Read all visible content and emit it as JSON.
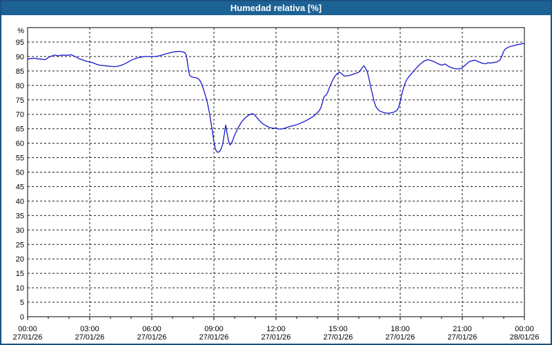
{
  "window": {
    "title": "Humedad relativa [%]"
  },
  "colors": {
    "titlebar_bg": "#1d6294",
    "titlebar_text": "#ffffff",
    "window_border": "#1a5080",
    "plot_border": "#000000",
    "grid": "#1a1a1a",
    "axis_text": "#000000",
    "line": "#1515cc",
    "plot_bg": "#ffffff"
  },
  "chart_data": {
    "type": "line",
    "title": "Humedad relativa [%]",
    "ylabel_unit": "%",
    "ylim": [
      0,
      100
    ],
    "y_ticks": [
      0,
      5,
      10,
      15,
      20,
      25,
      30,
      35,
      40,
      45,
      50,
      55,
      60,
      65,
      70,
      75,
      80,
      85,
      90,
      95
    ],
    "xlim_hours": [
      0,
      24
    ],
    "x_minor_tick_every_hours": 1,
    "grid": "dashed",
    "legend": "none",
    "x_ticks": [
      {
        "t": 0,
        "time": "00:00",
        "date": "27/01/26"
      },
      {
        "t": 3,
        "time": "03:00",
        "date": "27/01/26"
      },
      {
        "t": 6,
        "time": "06:00",
        "date": "27/01/26"
      },
      {
        "t": 9,
        "time": "09:00",
        "date": "27/01/26"
      },
      {
        "t": 12,
        "time": "12:00",
        "date": "27/01/26"
      },
      {
        "t": 15,
        "time": "15:00",
        "date": "27/01/26"
      },
      {
        "t": 18,
        "time": "18:00",
        "date": "27/01/26"
      },
      {
        "t": 21,
        "time": "21:00",
        "date": "27/01/26"
      },
      {
        "t": 24,
        "time": "00:00",
        "date": "28/01/26"
      }
    ],
    "series": [
      {
        "name": "Humedad relativa",
        "color": "#1515cc",
        "points": [
          [
            0.0,
            89.0
          ],
          [
            0.08,
            89.2
          ],
          [
            0.17,
            89.3
          ],
          [
            0.33,
            89.4
          ],
          [
            0.5,
            89.2
          ],
          [
            0.67,
            89.1
          ],
          [
            0.83,
            88.9
          ],
          [
            0.92,
            89.2
          ],
          [
            1.0,
            89.7
          ],
          [
            1.17,
            90.2
          ],
          [
            1.33,
            90.5
          ],
          [
            1.5,
            90.2
          ],
          [
            1.58,
            90.4
          ],
          [
            1.75,
            90.5
          ],
          [
            1.92,
            90.4
          ],
          [
            2.0,
            90.5
          ],
          [
            2.08,
            90.6
          ],
          [
            2.17,
            90.4
          ],
          [
            2.33,
            89.9
          ],
          [
            2.5,
            89.2
          ],
          [
            2.67,
            88.8
          ],
          [
            2.83,
            88.4
          ],
          [
            3.0,
            88.1
          ],
          [
            3.17,
            87.8
          ],
          [
            3.33,
            87.3
          ],
          [
            3.5,
            87.0
          ],
          [
            3.75,
            86.8
          ],
          [
            4.0,
            86.6
          ],
          [
            4.17,
            86.5
          ],
          [
            4.33,
            86.6
          ],
          [
            4.5,
            86.9
          ],
          [
            4.67,
            87.4
          ],
          [
            4.83,
            88.0
          ],
          [
            5.0,
            88.7
          ],
          [
            5.17,
            89.2
          ],
          [
            5.33,
            89.6
          ],
          [
            5.5,
            89.8
          ],
          [
            5.67,
            90.0
          ],
          [
            5.83,
            90.0
          ],
          [
            6.0,
            90.0
          ],
          [
            6.17,
            90.0
          ],
          [
            6.33,
            90.2
          ],
          [
            6.5,
            90.5
          ],
          [
            6.67,
            90.9
          ],
          [
            6.83,
            91.2
          ],
          [
            7.0,
            91.5
          ],
          [
            7.17,
            91.7
          ],
          [
            7.33,
            91.8
          ],
          [
            7.5,
            91.6
          ],
          [
            7.58,
            91.4
          ],
          [
            7.67,
            90.5
          ],
          [
            7.72,
            88.0
          ],
          [
            7.78,
            85.0
          ],
          [
            7.83,
            83.5
          ],
          [
            7.92,
            83.0
          ],
          [
            8.0,
            82.8
          ],
          [
            8.17,
            82.6
          ],
          [
            8.25,
            82.3
          ],
          [
            8.33,
            81.6
          ],
          [
            8.42,
            80.3
          ],
          [
            8.5,
            78.6
          ],
          [
            8.58,
            76.8
          ],
          [
            8.67,
            74.5
          ],
          [
            8.75,
            71.8
          ],
          [
            8.83,
            68.5
          ],
          [
            8.92,
            64.5
          ],
          [
            9.0,
            60.5
          ],
          [
            9.08,
            57.8
          ],
          [
            9.17,
            56.9
          ],
          [
            9.25,
            57.0
          ],
          [
            9.33,
            57.8
          ],
          [
            9.42,
            59.5
          ],
          [
            9.5,
            63.0
          ],
          [
            9.57,
            66.3
          ],
          [
            9.62,
            64.0
          ],
          [
            9.7,
            61.0
          ],
          [
            9.78,
            59.4
          ],
          [
            9.87,
            60.3
          ],
          [
            10.0,
            62.8
          ],
          [
            10.17,
            65.3
          ],
          [
            10.33,
            67.3
          ],
          [
            10.5,
            68.7
          ],
          [
            10.67,
            69.7
          ],
          [
            10.83,
            70.2
          ],
          [
            10.92,
            70.1
          ],
          [
            11.0,
            69.5
          ],
          [
            11.17,
            68.1
          ],
          [
            11.33,
            66.9
          ],
          [
            11.5,
            66.1
          ],
          [
            11.67,
            65.5
          ],
          [
            11.83,
            65.2
          ],
          [
            12.0,
            65.2
          ],
          [
            12.17,
            64.9
          ],
          [
            12.33,
            65.0
          ],
          [
            12.5,
            65.4
          ],
          [
            12.67,
            65.8
          ],
          [
            12.83,
            66.1
          ],
          [
            13.0,
            66.4
          ],
          [
            13.17,
            66.9
          ],
          [
            13.33,
            67.4
          ],
          [
            13.5,
            68.0
          ],
          [
            13.67,
            68.7
          ],
          [
            13.83,
            69.4
          ],
          [
            13.92,
            70.1
          ],
          [
            14.0,
            70.6
          ],
          [
            14.08,
            71.2
          ],
          [
            14.17,
            72.3
          ],
          [
            14.25,
            74.3
          ],
          [
            14.33,
            76.2
          ],
          [
            14.42,
            76.6
          ],
          [
            14.5,
            77.7
          ],
          [
            14.58,
            79.2
          ],
          [
            14.67,
            80.8
          ],
          [
            14.75,
            82.0
          ],
          [
            14.83,
            83.0
          ],
          [
            14.92,
            83.8
          ],
          [
            15.0,
            84.3
          ],
          [
            15.08,
            84.5
          ],
          [
            15.17,
            84.1
          ],
          [
            15.25,
            83.5
          ],
          [
            15.33,
            83.2
          ],
          [
            15.5,
            83.4
          ],
          [
            15.67,
            83.7
          ],
          [
            15.83,
            84.1
          ],
          [
            16.0,
            84.6
          ],
          [
            16.08,
            85.2
          ],
          [
            16.17,
            86.2
          ],
          [
            16.25,
            86.8
          ],
          [
            16.33,
            85.9
          ],
          [
            16.42,
            84.5
          ],
          [
            16.5,
            82.0
          ],
          [
            16.58,
            79.4
          ],
          [
            16.67,
            76.6
          ],
          [
            16.75,
            74.2
          ],
          [
            16.83,
            72.6
          ],
          [
            16.92,
            71.7
          ],
          [
            17.0,
            71.2
          ],
          [
            17.17,
            70.7
          ],
          [
            17.33,
            70.4
          ],
          [
            17.5,
            70.4
          ],
          [
            17.67,
            70.7
          ],
          [
            17.83,
            71.3
          ],
          [
            17.92,
            72.3
          ],
          [
            18.0,
            74.5
          ],
          [
            18.08,
            77.0
          ],
          [
            18.17,
            79.4
          ],
          [
            18.25,
            81.0
          ],
          [
            18.33,
            82.2
          ],
          [
            18.5,
            83.7
          ],
          [
            18.67,
            85.1
          ],
          [
            18.83,
            86.4
          ],
          [
            19.0,
            87.6
          ],
          [
            19.17,
            88.5
          ],
          [
            19.33,
            88.9
          ],
          [
            19.5,
            88.6
          ],
          [
            19.67,
            88.1
          ],
          [
            19.83,
            87.5
          ],
          [
            20.0,
            87.0
          ],
          [
            20.08,
            87.2
          ],
          [
            20.17,
            87.4
          ],
          [
            20.25,
            87.0
          ],
          [
            20.42,
            86.3
          ],
          [
            20.58,
            85.9
          ],
          [
            20.75,
            85.7
          ],
          [
            20.92,
            85.8
          ],
          [
            21.0,
            86.1
          ],
          [
            21.17,
            87.2
          ],
          [
            21.33,
            88.2
          ],
          [
            21.5,
            88.6
          ],
          [
            21.62,
            88.7
          ],
          [
            21.75,
            88.3
          ],
          [
            21.92,
            87.8
          ],
          [
            22.08,
            87.5
          ],
          [
            22.17,
            87.6
          ],
          [
            22.25,
            87.9
          ],
          [
            22.33,
            87.7
          ],
          [
            22.5,
            87.9
          ],
          [
            22.67,
            88.1
          ],
          [
            22.83,
            88.9
          ],
          [
            22.92,
            90.3
          ],
          [
            23.0,
            91.8
          ],
          [
            23.08,
            92.6
          ],
          [
            23.17,
            93.0
          ],
          [
            23.33,
            93.5
          ],
          [
            23.5,
            93.8
          ],
          [
            23.67,
            94.1
          ],
          [
            23.83,
            94.3
          ],
          [
            24.0,
            94.6
          ]
        ]
      }
    ]
  }
}
